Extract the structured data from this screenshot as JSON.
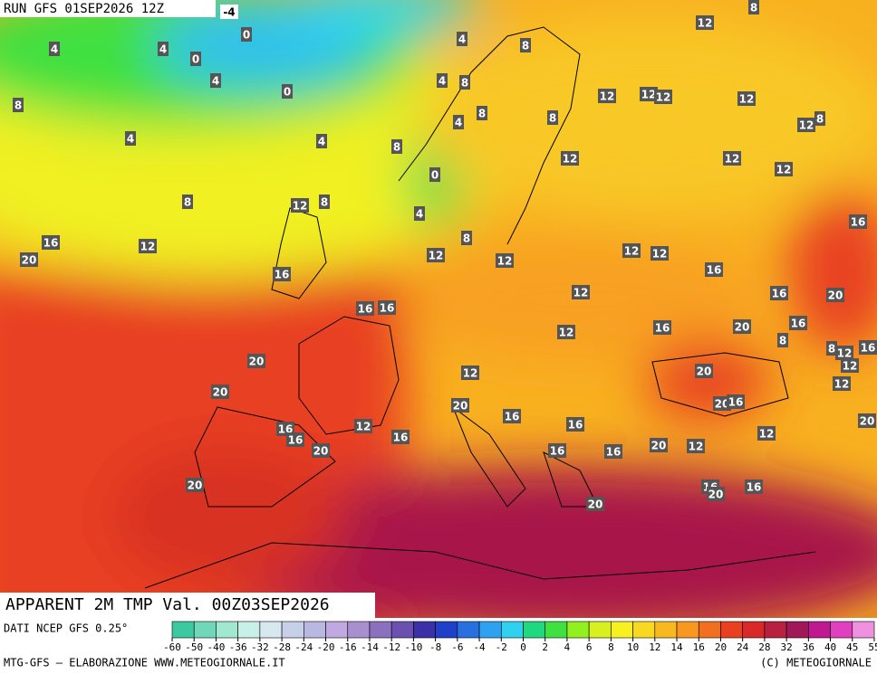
{
  "header": {
    "run": "RUN GFS 01SEP2026 12Z"
  },
  "map": {
    "labels": [
      -4,
      0,
      4,
      8,
      8,
      12,
      4,
      4,
      0,
      4,
      0,
      4,
      8,
      8,
      12,
      12,
      12,
      12,
      4,
      8,
      8,
      12,
      8,
      4,
      4,
      8,
      12,
      12,
      12,
      0,
      8,
      12,
      8,
      4,
      16,
      16,
      12,
      8,
      20,
      12,
      12,
      12,
      12,
      16,
      16,
      12,
      16,
      20,
      16,
      16,
      16,
      20,
      16,
      12,
      8,
      8,
      12,
      16,
      20,
      12,
      12,
      20,
      12,
      20,
      20,
      16,
      20,
      16,
      16,
      12,
      20,
      16,
      16,
      16,
      12,
      20,
      12,
      20,
      16,
      16,
      20,
      16,
      20,
      16,
      20
    ]
  },
  "footer": {
    "title": "APPARENT 2M TMP Val. 00Z03SEP2026",
    "source": "DATI NCEP GFS 0.25°",
    "credit": "MTG-GFS — ELABORAZIONE WWW.METEOGIORNALE.IT",
    "copyright": "(C) METEOGIORNALE"
  },
  "legend": {
    "ticks": [
      -60,
      -50,
      -40,
      -36,
      -32,
      -28,
      -24,
      -20,
      -16,
      -14,
      -12,
      -10,
      -8,
      -6,
      -4,
      -2,
      0,
      2,
      4,
      6,
      8,
      10,
      12,
      14,
      16,
      20,
      24,
      28,
      32,
      36,
      40,
      45,
      55
    ],
    "colors": [
      "#3cc8a0",
      "#70d8b8",
      "#a0e8d0",
      "#c8f0e8",
      "#d8e8f0",
      "#c8d0e8",
      "#b8b8e0",
      "#c0a8e0",
      "#a890d0",
      "#8c70c0",
      "#6c50b0",
      "#3c30a8",
      "#2040c8",
      "#2870e0",
      "#30a0f0",
      "#30d0f0",
      "#20d880",
      "#40e040",
      "#90f020",
      "#d8f020",
      "#f8f020",
      "#f8d820",
      "#f8b820",
      "#f89820",
      "#f07020",
      "#e84020",
      "#d82828",
      "#b82040",
      "#a01858",
      "#c01890",
      "#e040c0",
      "#f090e0"
    ]
  }
}
